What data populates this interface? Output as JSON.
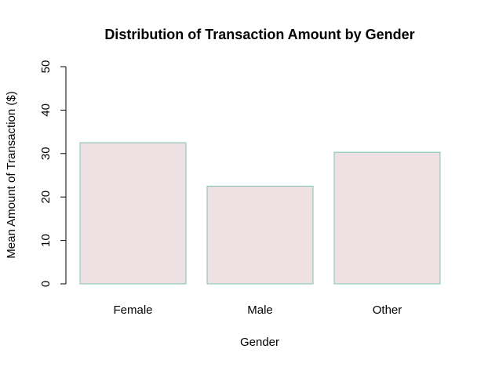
{
  "chart_data": {
    "type": "bar",
    "title": "Distribution of Transaction Amount by Gender",
    "xlabel": "Gender",
    "ylabel": "Mean Amount of Transaction ($)",
    "categories": [
      "Female",
      "Male",
      "Other"
    ],
    "values": [
      32.5,
      22.5,
      30.3
    ],
    "ylim": [
      0,
      50
    ],
    "yticks": [
      0,
      10,
      20,
      30,
      40,
      50
    ],
    "grid": false,
    "bar_fill": "#efe0e4",
    "bar_stroke": "#7fc4ae"
  }
}
